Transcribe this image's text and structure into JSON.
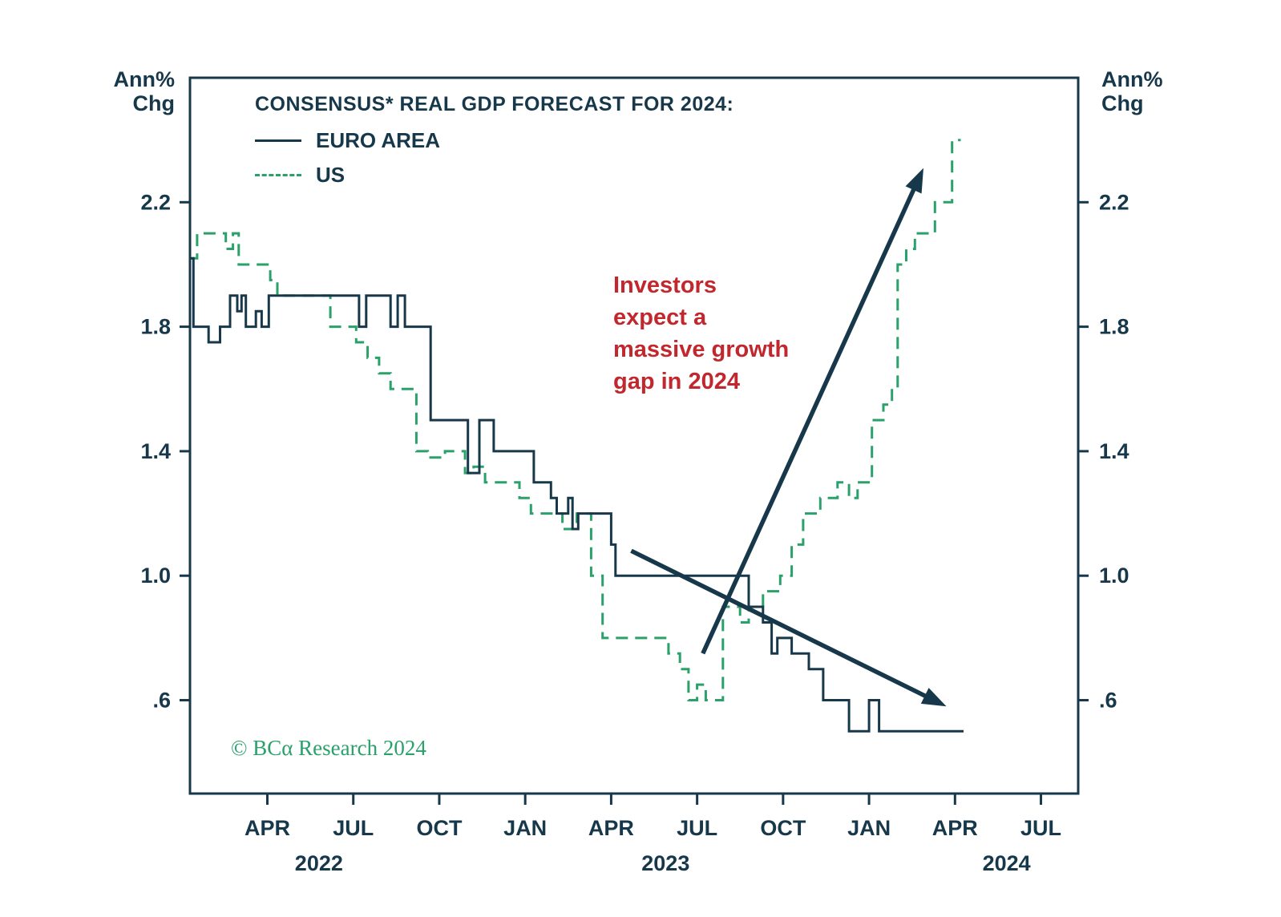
{
  "chart_data": {
    "type": "line",
    "title": "CONSENSUS* REAL GDP FORECAST FOR 2024:",
    "y_axis_label": "Ann%\nChg",
    "legend_position": "top-left-inside",
    "grid": false,
    "xlim": [
      0.3,
      31.3
    ],
    "ylim": [
      0.3,
      2.6
    ],
    "x_unit": "months-since-jan-2022",
    "x_ticks": [
      {
        "m": 3,
        "label": "APR"
      },
      {
        "m": 6,
        "label": "JUL"
      },
      {
        "m": 9,
        "label": "OCT"
      },
      {
        "m": 12,
        "label": "JAN"
      },
      {
        "m": 15,
        "label": "APR"
      },
      {
        "m": 18,
        "label": "JUL"
      },
      {
        "m": 21,
        "label": "OCT"
      },
      {
        "m": 24,
        "label": "JAN"
      },
      {
        "m": 27,
        "label": "APR"
      },
      {
        "m": 30,
        "label": "JUL"
      }
    ],
    "year_labels": [
      {
        "m": 4.8,
        "label": "2022"
      },
      {
        "m": 16.9,
        "label": "2023"
      },
      {
        "m": 28.8,
        "label": "2024"
      }
    ],
    "y_ticks": [
      {
        "v": 2.2,
        "label": "2.2"
      },
      {
        "v": 1.8,
        "label": "1.8"
      },
      {
        "v": 1.4,
        "label": "1.4"
      },
      {
        "v": 1.0,
        "label": "1.0"
      },
      {
        "v": 0.6,
        "label": ".6"
      }
    ],
    "series": [
      {
        "name": "US",
        "style": "dashed",
        "color": "#2aa06a",
        "points": [
          [
            0.3,
            2.02
          ],
          [
            0.55,
            2.02
          ],
          [
            0.55,
            2.1
          ],
          [
            1.55,
            2.1
          ],
          [
            1.55,
            2.05
          ],
          [
            1.8,
            2.05
          ],
          [
            1.8,
            2.1
          ],
          [
            2.0,
            2.1
          ],
          [
            2.0,
            2.0
          ],
          [
            3.1,
            2.0
          ],
          [
            3.1,
            1.95
          ],
          [
            3.35,
            1.95
          ],
          [
            3.35,
            1.9
          ],
          [
            5.2,
            1.9
          ],
          [
            5.2,
            1.8
          ],
          [
            6.1,
            1.8
          ],
          [
            6.1,
            1.75
          ],
          [
            6.5,
            1.75
          ],
          [
            6.5,
            1.7
          ],
          [
            6.9,
            1.7
          ],
          [
            6.9,
            1.65
          ],
          [
            7.3,
            1.65
          ],
          [
            7.3,
            1.6
          ],
          [
            8.2,
            1.6
          ],
          [
            8.2,
            1.4
          ],
          [
            8.6,
            1.4
          ],
          [
            8.6,
            1.38
          ],
          [
            9.2,
            1.38
          ],
          [
            9.2,
            1.4
          ],
          [
            9.9,
            1.4
          ],
          [
            9.9,
            1.33
          ],
          [
            10.2,
            1.33
          ],
          [
            10.2,
            1.35
          ],
          [
            10.6,
            1.35
          ],
          [
            10.6,
            1.3
          ],
          [
            11.8,
            1.3
          ],
          [
            11.8,
            1.25
          ],
          [
            12.2,
            1.25
          ],
          [
            12.2,
            1.2
          ],
          [
            13.3,
            1.2
          ],
          [
            13.3,
            1.15
          ],
          [
            13.8,
            1.15
          ],
          [
            13.8,
            1.2
          ],
          [
            14.3,
            1.2
          ],
          [
            14.3,
            1.0
          ],
          [
            14.7,
            1.0
          ],
          [
            14.7,
            0.8
          ],
          [
            17.0,
            0.8
          ],
          [
            17.0,
            0.75
          ],
          [
            17.4,
            0.75
          ],
          [
            17.4,
            0.7
          ],
          [
            17.7,
            0.7
          ],
          [
            17.7,
            0.6
          ],
          [
            18.0,
            0.6
          ],
          [
            18.0,
            0.65
          ],
          [
            18.3,
            0.65
          ],
          [
            18.3,
            0.6
          ],
          [
            18.9,
            0.6
          ],
          [
            18.9,
            0.9
          ],
          [
            19.5,
            0.9
          ],
          [
            19.5,
            0.85
          ],
          [
            19.8,
            0.85
          ],
          [
            19.8,
            0.9
          ],
          [
            20.3,
            0.9
          ],
          [
            20.3,
            0.95
          ],
          [
            20.9,
            0.95
          ],
          [
            20.9,
            1.0
          ],
          [
            21.3,
            1.0
          ],
          [
            21.3,
            1.1
          ],
          [
            21.7,
            1.1
          ],
          [
            21.7,
            1.2
          ],
          [
            22.3,
            1.2
          ],
          [
            22.3,
            1.25
          ],
          [
            22.9,
            1.25
          ],
          [
            22.9,
            1.3
          ],
          [
            23.3,
            1.3
          ],
          [
            23.3,
            1.25
          ],
          [
            23.6,
            1.25
          ],
          [
            23.6,
            1.3
          ],
          [
            24.1,
            1.3
          ],
          [
            24.1,
            1.5
          ],
          [
            24.5,
            1.5
          ],
          [
            24.5,
            1.55
          ],
          [
            24.8,
            1.55
          ],
          [
            24.8,
            1.6
          ],
          [
            25.0,
            1.6
          ],
          [
            25.0,
            2.0
          ],
          [
            25.3,
            2.0
          ],
          [
            25.3,
            2.05
          ],
          [
            25.6,
            2.05
          ],
          [
            25.6,
            2.1
          ],
          [
            26.3,
            2.1
          ],
          [
            26.3,
            2.2
          ],
          [
            26.9,
            2.2
          ],
          [
            26.9,
            2.4
          ],
          [
            27.2,
            2.4
          ]
        ]
      },
      {
        "name": "EURO AREA",
        "style": "solid",
        "color": "#17384a",
        "points": [
          [
            0.3,
            2.02
          ],
          [
            0.42,
            2.02
          ],
          [
            0.42,
            1.8
          ],
          [
            0.95,
            1.8
          ],
          [
            0.95,
            1.75
          ],
          [
            1.35,
            1.75
          ],
          [
            1.35,
            1.8
          ],
          [
            1.7,
            1.8
          ],
          [
            1.7,
            1.9
          ],
          [
            1.95,
            1.9
          ],
          [
            1.95,
            1.85
          ],
          [
            2.1,
            1.85
          ],
          [
            2.1,
            1.9
          ],
          [
            2.25,
            1.9
          ],
          [
            2.25,
            1.8
          ],
          [
            2.6,
            1.8
          ],
          [
            2.6,
            1.85
          ],
          [
            2.8,
            1.85
          ],
          [
            2.8,
            1.8
          ],
          [
            3.05,
            1.8
          ],
          [
            3.05,
            1.9
          ],
          [
            6.2,
            1.9
          ],
          [
            6.2,
            1.8
          ],
          [
            6.45,
            1.8
          ],
          [
            6.45,
            1.9
          ],
          [
            7.3,
            1.9
          ],
          [
            7.3,
            1.8
          ],
          [
            7.55,
            1.8
          ],
          [
            7.55,
            1.9
          ],
          [
            7.8,
            1.9
          ],
          [
            7.8,
            1.8
          ],
          [
            8.7,
            1.8
          ],
          [
            8.7,
            1.5
          ],
          [
            10.0,
            1.5
          ],
          [
            10.0,
            1.33
          ],
          [
            10.4,
            1.33
          ],
          [
            10.4,
            1.5
          ],
          [
            10.9,
            1.5
          ],
          [
            10.9,
            1.4
          ],
          [
            12.3,
            1.4
          ],
          [
            12.3,
            1.3
          ],
          [
            12.9,
            1.3
          ],
          [
            12.9,
            1.25
          ],
          [
            13.1,
            1.25
          ],
          [
            13.1,
            1.2
          ],
          [
            13.5,
            1.2
          ],
          [
            13.5,
            1.25
          ],
          [
            13.65,
            1.25
          ],
          [
            13.65,
            1.15
          ],
          [
            13.85,
            1.15
          ],
          [
            13.85,
            1.2
          ],
          [
            15.0,
            1.2
          ],
          [
            15.0,
            1.1
          ],
          [
            15.15,
            1.1
          ],
          [
            15.15,
            1.0
          ],
          [
            19.8,
            1.0
          ],
          [
            19.8,
            0.9
          ],
          [
            20.3,
            0.9
          ],
          [
            20.3,
            0.85
          ],
          [
            20.6,
            0.85
          ],
          [
            20.6,
            0.75
          ],
          [
            20.8,
            0.75
          ],
          [
            20.8,
            0.8
          ],
          [
            21.3,
            0.8
          ],
          [
            21.3,
            0.75
          ],
          [
            21.9,
            0.75
          ],
          [
            21.9,
            0.7
          ],
          [
            22.4,
            0.7
          ],
          [
            22.4,
            0.6
          ],
          [
            23.3,
            0.6
          ],
          [
            23.3,
            0.5
          ],
          [
            24.0,
            0.5
          ],
          [
            24.0,
            0.6
          ],
          [
            24.35,
            0.6
          ],
          [
            24.35,
            0.5
          ],
          [
            27.3,
            0.5
          ]
        ]
      }
    ],
    "arrows": [
      {
        "from": [
          18.2,
          0.75
        ],
        "to": [
          25.9,
          2.31
        ]
      },
      {
        "from": [
          15.7,
          1.08
        ],
        "to": [
          26.7,
          0.58
        ]
      }
    ],
    "annotation": {
      "text": "Investors\nexpect a\nmassive growth\ngap in 2024",
      "color": "#c1272d"
    },
    "copyright": "© BCα Research 2024",
    "frame_color": "#17384a"
  }
}
